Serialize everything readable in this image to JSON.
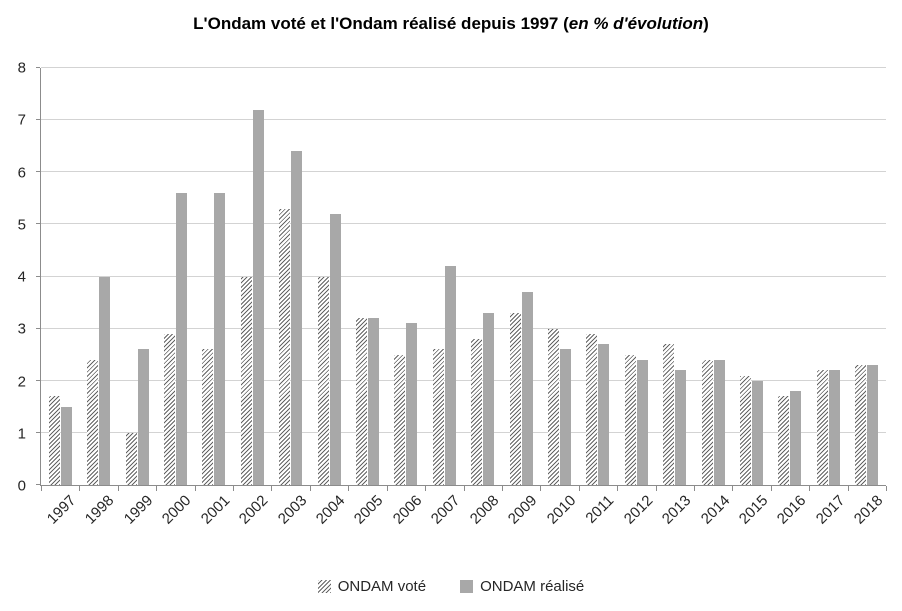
{
  "chart_data": {
    "type": "bar",
    "title_prefix": "L'Ondam voté et l'Ondam réalisé depuis 1997 (",
    "title_italic": "en % d'évolution",
    "title_suffix": ")",
    "categories": [
      "1997",
      "1998",
      "1999",
      "2000",
      "2001",
      "2002",
      "2003",
      "2004",
      "2005",
      "2006",
      "2007",
      "2008",
      "2009",
      "2010",
      "2011",
      "2012",
      "2013",
      "2014",
      "2015",
      "2016",
      "2017",
      "2018"
    ],
    "series": [
      {
        "name": "ONDAM voté",
        "style": "hatch",
        "values": [
          1.7,
          2.4,
          1.0,
          2.9,
          2.6,
          4.0,
          5.3,
          4.0,
          3.2,
          2.5,
          2.6,
          2.8,
          3.3,
          3.0,
          2.9,
          2.5,
          2.7,
          2.4,
          2.1,
          1.7,
          2.2,
          2.3
        ]
      },
      {
        "name": "ONDAM réalisé",
        "style": "solid",
        "values": [
          1.5,
          4.0,
          2.6,
          5.6,
          5.6,
          7.2,
          6.4,
          5.2,
          3.2,
          3.1,
          4.2,
          3.3,
          3.7,
          2.6,
          2.7,
          2.4,
          2.2,
          2.4,
          2.0,
          1.8,
          2.2,
          2.3
        ]
      }
    ],
    "ylim": [
      0,
      8
    ],
    "yticks": [
      "0",
      "1",
      "2",
      "3",
      "4",
      "5",
      "6",
      "7",
      "8"
    ],
    "grid": true,
    "legend_position": "bottom",
    "colors": {
      "solid_fill": "#a8a8a8",
      "hatch_line": "#636363",
      "grid": "#d3d3d3",
      "axis": "#8c8c8c",
      "text": "#262626"
    }
  }
}
